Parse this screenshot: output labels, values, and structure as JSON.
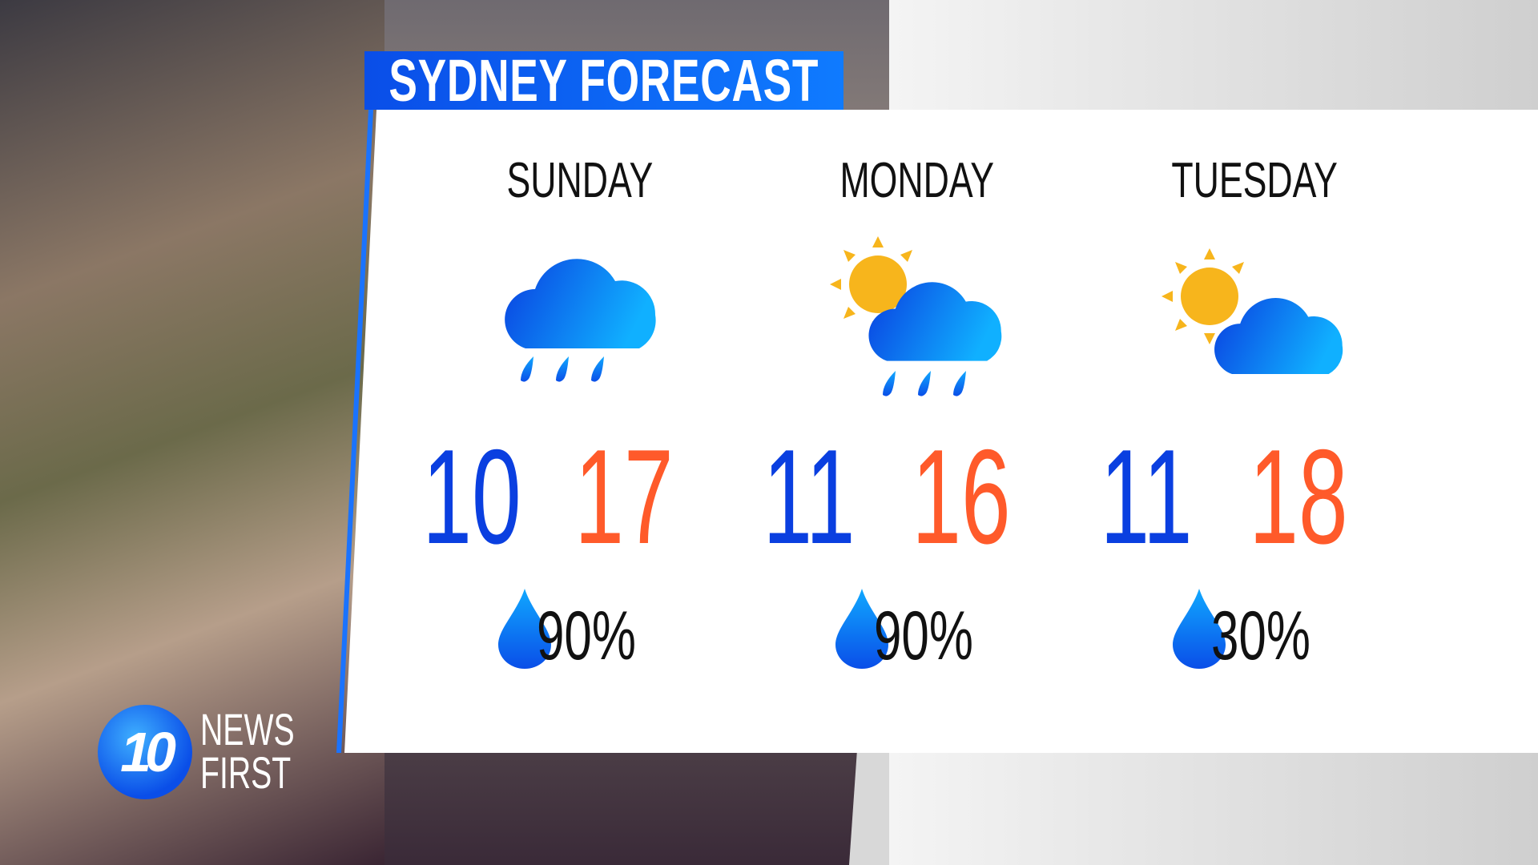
{
  "title": "SYDNEY FORECAST",
  "colors": {
    "accent_blue": "#0a4ee8",
    "low_temp": "#0a3fe0",
    "high_temp": "#ff5a2a",
    "sun": "#f7b51c"
  },
  "days": [
    {
      "name": "SUNDAY",
      "icon": "rain-cloud-icon",
      "low": "10",
      "high": "17",
      "rain_chance": "90%"
    },
    {
      "name": "MONDAY",
      "icon": "sun-cloud-rain-icon",
      "low": "11",
      "high": "16",
      "rain_chance": "90%"
    },
    {
      "name": "TUESDAY",
      "icon": "partly-cloudy-icon",
      "low": "11",
      "high": "18",
      "rain_chance": "30%"
    }
  ],
  "logo": {
    "number": "10",
    "line1": "NEWS",
    "line2": "FIRST"
  }
}
